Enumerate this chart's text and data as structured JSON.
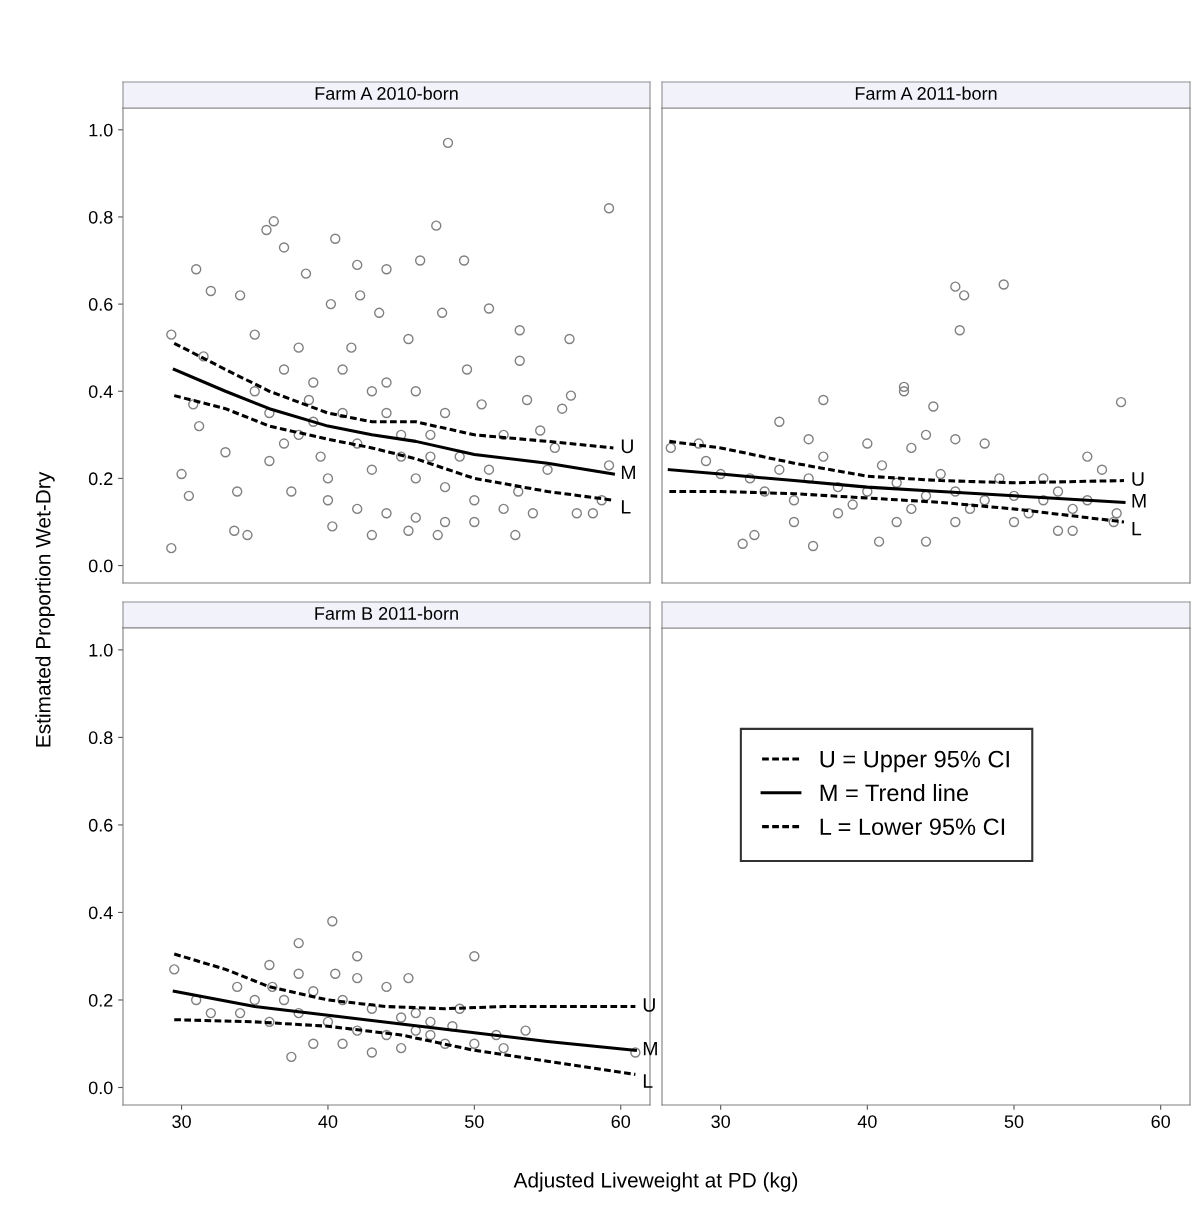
{
  "chart_data": [
    {
      "type": "scatter",
      "title": "Farm A 2010-born",
      "ylabel": "Estimated Proportion Wet-Dry",
      "xlim": [
        26,
        62
      ],
      "ylim": [
        -0.04,
        1.05
      ],
      "yticks": [
        {
          "value": 0,
          "label": "0.0"
        },
        {
          "value": 0.2,
          "label": "0.2"
        },
        {
          "value": 0.4,
          "label": "0.4"
        },
        {
          "value": 0.6,
          "label": "0.6"
        },
        {
          "value": 0.8,
          "label": "0.8"
        },
        {
          "value": 1,
          "label": "1.0"
        }
      ],
      "tick_labels": "y",
      "grid": false,
      "series": [
        {
          "marker": "circle",
          "color": "#808080",
          "x": [
            29.3,
            30.5,
            30,
            29.3,
            31,
            33.6,
            34.5,
            36.3,
            35.8,
            48.2,
            59.2,
            47.4,
            40.5,
            49.3,
            46.3,
            51,
            56.5,
            56.6,
            53.1,
            53.1,
            43,
            47.5,
            52.8,
            40.3,
            45.5,
            58.7,
            58.1,
            57,
            59.2,
            56,
            55.5,
            37,
            34,
            38.5,
            42,
            44,
            32,
            35,
            31.5,
            30.8,
            31.2,
            33,
            33.8,
            36,
            37.5,
            38.7,
            40.2,
            42.2,
            41.6,
            43.5,
            45.5,
            47.8,
            49.5,
            50.5,
            52,
            53.6,
            54.5,
            55,
            38,
            39.5,
            40,
            41,
            42,
            43,
            44,
            45,
            46,
            47,
            48,
            49,
            50,
            51,
            52,
            53,
            54,
            39,
            41,
            44,
            46,
            48,
            36,
            37,
            35,
            38,
            40,
            42,
            44,
            46,
            48,
            50,
            45,
            43,
            47,
            39,
            37
          ],
          "values": [
            0.04,
            0.16,
            0.21,
            0.53,
            0.68,
            0.08,
            0.07,
            0.79,
            0.77,
            0.97,
            0.82,
            0.78,
            0.75,
            0.7,
            0.7,
            0.59,
            0.52,
            0.39,
            0.47,
            0.54,
            0.07,
            0.07,
            0.07,
            0.09,
            0.08,
            0.15,
            0.12,
            0.12,
            0.23,
            0.36,
            0.27,
            0.73,
            0.62,
            0.67,
            0.69,
            0.68,
            0.63,
            0.53,
            0.48,
            0.37,
            0.32,
            0.26,
            0.17,
            0.24,
            0.17,
            0.38,
            0.6,
            0.62,
            0.5,
            0.58,
            0.52,
            0.58,
            0.45,
            0.37,
            0.3,
            0.38,
            0.31,
            0.22,
            0.3,
            0.25,
            0.2,
            0.35,
            0.28,
            0.22,
            0.35,
            0.25,
            0.2,
            0.3,
            0.18,
            0.25,
            0.15,
            0.22,
            0.13,
            0.17,
            0.12,
            0.42,
            0.45,
            0.42,
            0.4,
            0.35,
            0.35,
            0.45,
            0.4,
            0.5,
            0.15,
            0.13,
            0.12,
            0.11,
            0.1,
            0.1,
            0.3,
            0.4,
            0.25,
            0.33,
            0.28
          ]
        },
        {
          "type": "line",
          "line_style": "dashed",
          "marker": "none",
          "color": "#000000",
          "x": [
            29.5,
            33,
            36,
            40,
            43,
            46,
            50,
            55,
            59.5
          ],
          "values": [
            0.51,
            0.45,
            0.4,
            0.35,
            0.33,
            0.33,
            0.3,
            0.285,
            0.27
          ]
        },
        {
          "type": "line",
          "line_style": "solid",
          "marker": "none",
          "color": "#000000",
          "x": [
            29.5,
            33,
            36,
            40,
            43,
            46,
            50,
            55,
            59.5
          ],
          "values": [
            0.45,
            0.4,
            0.36,
            0.32,
            0.3,
            0.285,
            0.255,
            0.235,
            0.21
          ]
        },
        {
          "type": "line",
          "line_style": "dashed",
          "marker": "none",
          "color": "#000000",
          "x": [
            29.5,
            33,
            36,
            40,
            43,
            46,
            50,
            55,
            59.5
          ],
          "values": [
            0.39,
            0.36,
            0.32,
            0.29,
            0.27,
            0.245,
            0.2,
            0.17,
            0.15
          ]
        }
      ],
      "annotations": [
        "U",
        "M",
        "L"
      ]
    },
    {
      "type": "scatter",
      "title": "Farm A 2011-born",
      "xlim": [
        26,
        62
      ],
      "ylim": [
        -0.04,
        1.05
      ],
      "tick_labels": false,
      "grid": false,
      "series": [
        {
          "marker": "circle",
          "color": "#808080",
          "x": [
            46,
            46.6,
            46.3,
            49.3,
            57.3,
            37,
            42.5,
            42.5,
            44.5,
            34,
            26.6,
            28.5,
            31.5,
            32.3,
            36.3,
            40.8,
            44,
            35,
            53,
            54,
            56.8,
            55,
            56,
            32,
            34,
            36,
            38,
            40,
            42,
            44,
            46,
            48,
            50,
            52,
            35,
            39,
            41,
            43,
            45,
            47,
            49,
            51,
            53,
            37,
            40,
            43,
            46,
            48,
            38,
            42,
            46,
            50,
            54,
            30,
            29,
            33,
            52,
            55,
            57,
            36,
            44
          ],
          "values": [
            0.64,
            0.62,
            0.54,
            0.645,
            0.375,
            0.38,
            0.41,
            0.4,
            0.365,
            0.33,
            0.27,
            0.28,
            0.05,
            0.07,
            0.045,
            0.055,
            0.055,
            0.1,
            0.08,
            0.08,
            0.1,
            0.25,
            0.22,
            0.2,
            0.22,
            0.2,
            0.18,
            0.17,
            0.19,
            0.16,
            0.17,
            0.15,
            0.16,
            0.15,
            0.15,
            0.14,
            0.23,
            0.13,
            0.21,
            0.13,
            0.2,
            0.12,
            0.17,
            0.25,
            0.28,
            0.27,
            0.29,
            0.28,
            0.12,
            0.1,
            0.1,
            0.1,
            0.13,
            0.21,
            0.24,
            0.17,
            0.2,
            0.15,
            0.12,
            0.29,
            0.3
          ]
        },
        {
          "type": "line",
          "line_style": "dashed",
          "marker": "none",
          "color": "#000000",
          "x": [
            26.5,
            30,
            35,
            40,
            45,
            50,
            57.5
          ],
          "values": [
            0.285,
            0.27,
            0.235,
            0.205,
            0.195,
            0.19,
            0.195
          ]
        },
        {
          "type": "line",
          "line_style": "solid",
          "marker": "none",
          "color": "#000000",
          "x": [
            26.5,
            30,
            35,
            40,
            45,
            50,
            57.5
          ],
          "values": [
            0.22,
            0.21,
            0.195,
            0.18,
            0.17,
            0.16,
            0.145
          ]
        },
        {
          "type": "line",
          "line_style": "dashed",
          "marker": "none",
          "color": "#000000",
          "x": [
            26.5,
            30,
            35,
            40,
            45,
            50,
            57.5
          ],
          "values": [
            0.17,
            0.17,
            0.165,
            0.155,
            0.145,
            0.13,
            0.1
          ]
        }
      ],
      "annotations": [
        "U",
        "M",
        "L"
      ]
    },
    {
      "type": "scatter",
      "title": "Farm B 2011-born",
      "xlabel": "Adjusted Liveweight at PD (kg)",
      "xlim": [
        26,
        62
      ],
      "xticks": [
        30,
        40,
        50,
        60
      ],
      "ylim": [
        -0.04,
        1.05
      ],
      "yticks": [
        {
          "value": 0,
          "label": "0.0"
        },
        {
          "value": 0.2,
          "label": "0.2"
        },
        {
          "value": 0.4,
          "label": "0.4"
        },
        {
          "value": 0.6,
          "label": "0.6"
        },
        {
          "value": 0.8,
          "label": "0.8"
        },
        {
          "value": 1,
          "label": "1.0"
        }
      ],
      "grid": false,
      "legend": "right",
      "series": [
        {
          "marker": "circle",
          "color": "#808080",
          "x": [
            29.5,
            40.3,
            38,
            50,
            37.5,
            45.5,
            33.8,
            36,
            38,
            36.2,
            40.5,
            42,
            46,
            49,
            51.5,
            53.5,
            61,
            50,
            52,
            34,
            35,
            36,
            37,
            38,
            39,
            40,
            41,
            42,
            43,
            44,
            45,
            46,
            47,
            48,
            39,
            42,
            44,
            41,
            43,
            32,
            31,
            47,
            48.5,
            45
          ],
          "values": [
            0.27,
            0.38,
            0.33,
            0.3,
            0.07,
            0.25,
            0.23,
            0.28,
            0.26,
            0.23,
            0.26,
            0.3,
            0.17,
            0.18,
            0.12,
            0.13,
            0.08,
            0.1,
            0.09,
            0.17,
            0.2,
            0.15,
            0.2,
            0.17,
            0.22,
            0.15,
            0.2,
            0.13,
            0.18,
            0.12,
            0.16,
            0.13,
            0.12,
            0.1,
            0.1,
            0.25,
            0.23,
            0.1,
            0.08,
            0.17,
            0.2,
            0.15,
            0.14,
            0.09
          ]
        },
        {
          "type": "line",
          "name": "U = Upper 95% CI",
          "line_style": "dashed",
          "marker": "none",
          "color": "#000000",
          "x": [
            29.5,
            33,
            36,
            40,
            44,
            48,
            52,
            61
          ],
          "values": [
            0.305,
            0.27,
            0.23,
            0.2,
            0.185,
            0.18,
            0.185,
            0.185
          ]
        },
        {
          "type": "line",
          "name": "M = Trend line",
          "line_style": "solid",
          "marker": "none",
          "color": "#000000",
          "x": [
            29.5,
            35,
            40,
            45,
            50,
            55,
            61
          ],
          "values": [
            0.22,
            0.185,
            0.165,
            0.145,
            0.125,
            0.105,
            0.085
          ]
        },
        {
          "type": "line",
          "name": "L = Lower 95% CI",
          "line_style": "dashed",
          "marker": "none",
          "color": "#000000",
          "x": [
            29.5,
            35,
            40,
            45,
            50,
            55,
            61
          ],
          "values": [
            0.155,
            0.15,
            0.14,
            0.12,
            0.085,
            0.06,
            0.03
          ]
        }
      ],
      "annotations": [
        "U",
        "M",
        "L"
      ]
    },
    {
      "type": "scatter",
      "xlim": [
        26,
        62
      ],
      "xticks": [
        30,
        40,
        50,
        60
      ],
      "ylim": [
        -0.04,
        1.05
      ],
      "tick_labels": "x",
      "grid": false
    }
  ]
}
